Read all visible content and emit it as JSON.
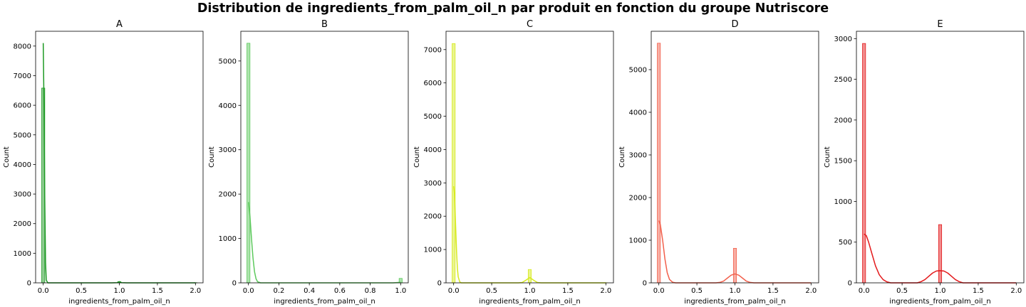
{
  "suptitle": "Distribution de ingredients_from_palm_oil_n par produit en fonction du groupe Nutriscore",
  "chart_data": [
    {
      "type": "bar",
      "title": "A",
      "xlabel": "ingredients_from_palm_oil_n",
      "ylabel": "Count",
      "color": "#1e9a24",
      "xlim": [
        -0.1,
        2.1
      ],
      "ylim": [
        0,
        8500
      ],
      "xticks": [
        0.0,
        0.5,
        1.0,
        1.5,
        2.0
      ],
      "xtick_labels": [
        "0.0",
        "0.5",
        "1.0",
        "1.5",
        "2.0"
      ],
      "yticks": [
        0,
        1000,
        2000,
        3000,
        4000,
        5000,
        6000,
        7000,
        8000
      ],
      "ytick_labels": [
        "0",
        "1000",
        "2000",
        "3000",
        "4000",
        "5000",
        "6000",
        "7000",
        "8000"
      ],
      "bin_width": 0.04,
      "bars": [
        {
          "x": 0.0,
          "count": 6580
        },
        {
          "x": 1.0,
          "count": 40
        },
        {
          "x": 2.0,
          "count": 5
        }
      ],
      "kde": [
        [
          0,
          8100
        ],
        [
          0.01,
          6000
        ],
        [
          0.02,
          2800
        ],
        [
          0.03,
          700
        ],
        [
          0.04,
          90
        ],
        [
          0.06,
          0
        ],
        [
          0.9,
          0
        ],
        [
          0.97,
          5
        ],
        [
          1.0,
          40
        ],
        [
          1.03,
          5
        ],
        [
          1.1,
          0
        ],
        [
          2.0,
          0
        ]
      ],
      "grid": false,
      "legend": "none"
    },
    {
      "type": "bar",
      "title": "B",
      "xlabel": "ingredients_from_palm_oil_n",
      "ylabel": "Count",
      "color": "#5cc95c",
      "xlim": [
        -0.05,
        1.05
      ],
      "ylim": [
        0,
        5670
      ],
      "xticks": [
        0.0,
        0.2,
        0.4,
        0.6,
        0.8,
        1.0
      ],
      "xtick_labels": [
        "0.0",
        "0.2",
        "0.4",
        "0.6",
        "0.8",
        "1.0"
      ],
      "yticks": [
        0,
        1000,
        2000,
        3000,
        4000,
        5000
      ],
      "ytick_labels": [
        "0",
        "1000",
        "2000",
        "3000",
        "4000",
        "5000"
      ],
      "bin_width": 0.02,
      "bars": [
        {
          "x": 0.0,
          "count": 5400
        },
        {
          "x": 1.0,
          "count": 100
        }
      ],
      "kde": [
        [
          0,
          1820
        ],
        [
          0.01,
          1500
        ],
        [
          0.02,
          1000
        ],
        [
          0.03,
          560
        ],
        [
          0.04,
          250
        ],
        [
          0.05,
          90
        ],
        [
          0.06,
          25
        ],
        [
          0.08,
          0
        ],
        [
          0.95,
          0
        ],
        [
          1.0,
          12
        ]
      ],
      "grid": false,
      "legend": "none"
    },
    {
      "type": "bar",
      "title": "C",
      "xlabel": "ingredients_from_palm_oil_n",
      "ylabel": "Count",
      "color": "#d6ea1c",
      "xlim": [
        -0.1,
        2.1
      ],
      "ylim": [
        0,
        7550
      ],
      "xticks": [
        0.0,
        0.5,
        1.0,
        1.5,
        2.0
      ],
      "xtick_labels": [
        "0.0",
        "0.5",
        "1.0",
        "1.5",
        "2.0"
      ],
      "yticks": [
        0,
        1000,
        2000,
        3000,
        4000,
        5000,
        6000,
        7000
      ],
      "ytick_labels": [
        "0",
        "1000",
        "2000",
        "3000",
        "4000",
        "5000",
        "6000",
        "7000"
      ],
      "bin_width": 0.04,
      "bars": [
        {
          "x": 0.0,
          "count": 7180
        },
        {
          "x": 1.0,
          "count": 400
        },
        {
          "x": 2.0,
          "count": 3
        }
      ],
      "kde": [
        [
          0,
          2900
        ],
        [
          0.01,
          2700
        ],
        [
          0.02,
          2100
        ],
        [
          0.03,
          1450
        ],
        [
          0.04,
          850
        ],
        [
          0.05,
          420
        ],
        [
          0.06,
          180
        ],
        [
          0.08,
          30
        ],
        [
          0.1,
          0
        ],
        [
          0.85,
          0
        ],
        [
          0.9,
          10
        ],
        [
          0.95,
          80
        ],
        [
          1.0,
          160
        ],
        [
          1.05,
          80
        ],
        [
          1.1,
          10
        ],
        [
          1.15,
          0
        ],
        [
          2.0,
          0
        ]
      ],
      "grid": false,
      "legend": "none"
    },
    {
      "type": "bar",
      "title": "D",
      "xlabel": "ingredients_from_palm_oil_n",
      "ylabel": "Count",
      "color": "#f2604c",
      "xlim": [
        -0.1,
        2.1
      ],
      "ylim": [
        0,
        5900
      ],
      "xticks": [
        0.0,
        0.5,
        1.0,
        1.5,
        2.0
      ],
      "xtick_labels": [
        "0.0",
        "0.5",
        "1.0",
        "1.5",
        "2.0"
      ],
      "yticks": [
        0,
        1000,
        2000,
        3000,
        4000,
        5000
      ],
      "ytick_labels": [
        "0",
        "1000",
        "2000",
        "3000",
        "4000",
        "5000"
      ],
      "bin_width": 0.04,
      "bars": [
        {
          "x": 0.0,
          "count": 5620
        },
        {
          "x": 1.0,
          "count": 810
        }
      ],
      "kde": [
        [
          0,
          1460
        ],
        [
          0.02,
          1360
        ],
        [
          0.05,
          1000
        ],
        [
          0.08,
          560
        ],
        [
          0.11,
          240
        ],
        [
          0.14,
          80
        ],
        [
          0.18,
          15
        ],
        [
          0.22,
          0
        ],
        [
          0.75,
          0
        ],
        [
          0.8,
          10
        ],
        [
          0.85,
          40
        ],
        [
          0.9,
          110
        ],
        [
          0.95,
          180
        ],
        [
          1.0,
          210
        ],
        [
          1.05,
          180
        ],
        [
          1.1,
          110
        ],
        [
          1.15,
          40
        ],
        [
          1.2,
          10
        ],
        [
          1.25,
          0
        ],
        [
          2.0,
          0
        ]
      ],
      "grid": false,
      "legend": "none"
    },
    {
      "type": "bar",
      "title": "E",
      "xlabel": "ingredients_from_palm_oil_n",
      "ylabel": "Count",
      "color": "#e31a1c",
      "xlim": [
        -0.1,
        2.1
      ],
      "ylim": [
        0,
        3090
      ],
      "xticks": [
        0.0,
        0.5,
        1.0,
        1.5,
        2.0
      ],
      "xtick_labels": [
        "0.0",
        "0.5",
        "1.0",
        "1.5",
        "2.0"
      ],
      "yticks": [
        0,
        500,
        1000,
        1500,
        2000,
        2500,
        3000
      ],
      "ytick_labels": [
        "0",
        "500",
        "1000",
        "1500",
        "2000",
        "2500",
        "3000"
      ],
      "bin_width": 0.04,
      "bars": [
        {
          "x": 0.0,
          "count": 2940
        },
        {
          "x": 1.0,
          "count": 715
        }
      ],
      "kde": [
        [
          0,
          600
        ],
        [
          0.03,
          580
        ],
        [
          0.06,
          500
        ],
        [
          0.1,
          370
        ],
        [
          0.15,
          210
        ],
        [
          0.2,
          100
        ],
        [
          0.25,
          40
        ],
        [
          0.3,
          12
        ],
        [
          0.35,
          0
        ],
        [
          0.7,
          0
        ],
        [
          0.75,
          15
        ],
        [
          0.8,
          40
        ],
        [
          0.85,
          80
        ],
        [
          0.9,
          120
        ],
        [
          0.95,
          145
        ],
        [
          1.0,
          150
        ],
        [
          1.05,
          145
        ],
        [
          1.1,
          120
        ],
        [
          1.15,
          80
        ],
        [
          1.2,
          40
        ],
        [
          1.25,
          15
        ],
        [
          1.3,
          0
        ],
        [
          2.0,
          0
        ]
      ],
      "grid": false,
      "legend": "none"
    }
  ]
}
